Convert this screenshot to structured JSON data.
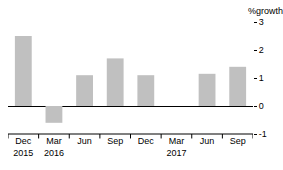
{
  "chart_data": {
    "type": "bar",
    "y_label": "%growth",
    "categories": [
      "Dec 2015",
      "Mar 2016",
      "Jun",
      "Sep",
      "Dec",
      "Mar 2017",
      "Jun",
      "Sep"
    ],
    "values": [
      2.5,
      -0.6,
      1.1,
      1.7,
      1.1,
      0,
      1.15,
      1.4
    ],
    "color": "#c0c0c0",
    "ylim": [
      -1,
      3
    ],
    "yticks": [
      -1,
      0,
      1,
      2,
      3
    ],
    "grid": false
  }
}
